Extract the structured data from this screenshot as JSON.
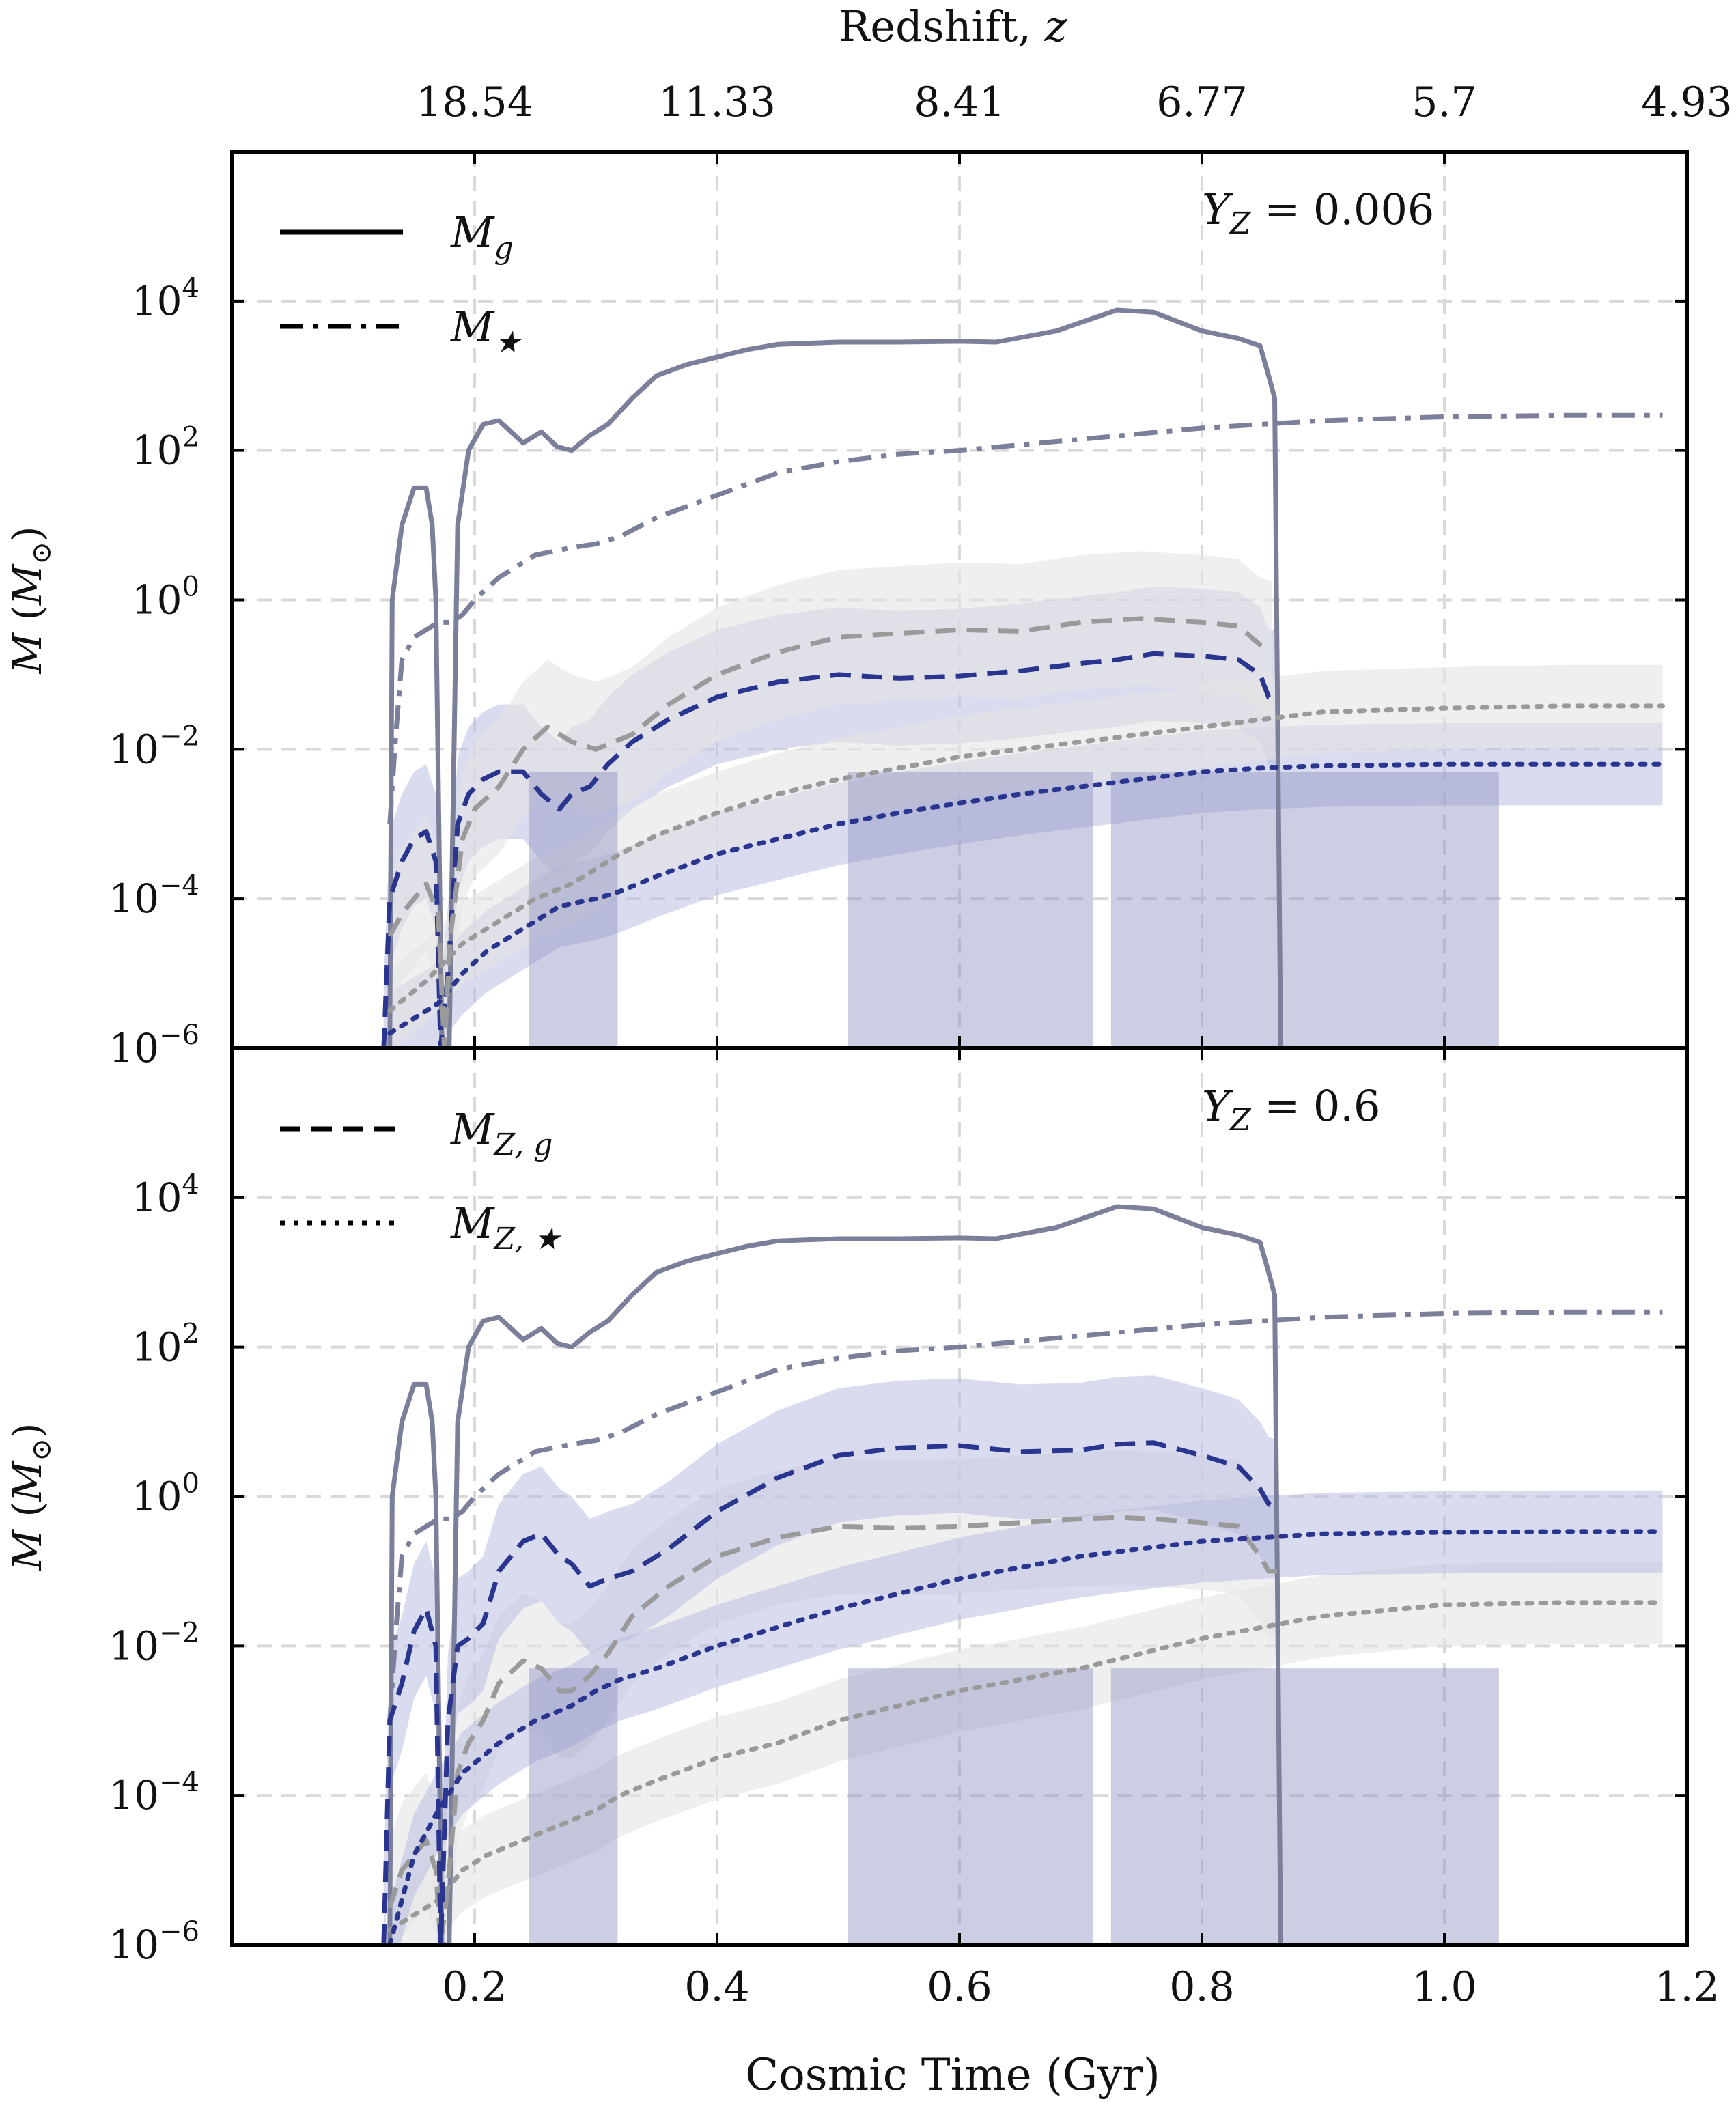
{
  "chart_data": [
    {
      "type": "line",
      "panel_label": "Y_Z = 0.006",
      "panel_label_parts": {
        "sym": "Y",
        "sub": "Z",
        "eq": " = 0.006"
      },
      "top_axis": {
        "label_text": "Redshift, ",
        "label_var": "z",
        "ticks": [
          "18.54",
          "11.33",
          "8.41",
          "6.77",
          "5.7",
          "4.93"
        ],
        "positions": [
          0.2,
          0.4,
          0.6,
          0.8,
          1.0,
          1.2
        ]
      },
      "xlim": [
        0.0,
        1.2
      ],
      "xticks": [
        0.2,
        0.4,
        0.6,
        0.8,
        1.0,
        1.2
      ],
      "xtick_labels": [
        "0.2",
        "0.4",
        "0.6",
        "0.8",
        "1.0",
        "1.2"
      ],
      "ylim_log10": [
        -6,
        6
      ],
      "yticks_log10": [
        -6,
        -4,
        -2,
        0,
        2,
        4
      ],
      "ytick_labels": [
        {
          "b": "10",
          "e": "−6"
        },
        {
          "b": "10",
          "e": "−4"
        },
        {
          "b": "10",
          "e": "−2"
        },
        {
          "b": "10",
          "e": "0"
        },
        {
          "b": "10",
          "e": "2"
        },
        {
          "b": "10",
          "e": "4"
        }
      ],
      "ylabel": {
        "sym": "M",
        "unit": "(M",
        "sun": "⊙",
        ")": ")"
      },
      "y_scale": "log",
      "grid": true,
      "legend": [
        {
          "name": "M_g",
          "sym": "M",
          "sub": "g",
          "style": "solid"
        },
        {
          "name": "M_★",
          "sym": "M",
          "sub": "★",
          "style": "dashdot"
        }
      ],
      "legend_position": "top-left",
      "series": [
        {
          "name": "M_g",
          "style": "solid",
          "color": "#7c7f9a",
          "x": [
            0.13,
            0.132,
            0.14,
            0.15,
            0.16,
            0.165,
            0.168,
            0.173,
            0.179,
            0.186,
            0.195,
            0.207,
            0.22,
            0.24,
            0.255,
            0.268,
            0.28,
            0.295,
            0.31,
            0.33,
            0.35,
            0.375,
            0.4,
            0.425,
            0.45,
            0.5,
            0.55,
            0.6,
            0.63,
            0.68,
            0.73,
            0.76,
            0.8,
            0.83,
            0.848,
            0.855,
            0.86,
            0.865
          ],
          "y": [
            -6,
            0.0,
            1.0,
            1.5,
            1.5,
            1.0,
            0.0,
            -6,
            -6,
            1.0,
            2.0,
            2.35,
            2.4,
            2.1,
            2.25,
            2.05,
            2.0,
            2.2,
            2.35,
            2.7,
            3.0,
            3.15,
            3.25,
            3.35,
            3.42,
            3.45,
            3.45,
            3.46,
            3.45,
            3.6,
            3.88,
            3.85,
            3.6,
            3.5,
            3.4,
            3.0,
            2.7,
            -6
          ]
        },
        {
          "name": "M_★",
          "style": "dashdot",
          "color": "#7c7f9a",
          "x": [
            0.13,
            0.135,
            0.14,
            0.15,
            0.16,
            0.17,
            0.18,
            0.19,
            0.2,
            0.22,
            0.25,
            0.28,
            0.3,
            0.32,
            0.35,
            0.4,
            0.45,
            0.5,
            0.55,
            0.6,
            0.7,
            0.8,
            0.9,
            1.0,
            1.1,
            1.18
          ],
          "y": [
            -3.0,
            -1.8,
            -0.8,
            -0.5,
            -0.4,
            -0.3,
            -0.3,
            -0.2,
            0.0,
            0.3,
            0.6,
            0.7,
            0.75,
            0.85,
            1.1,
            1.4,
            1.7,
            1.85,
            1.95,
            2.0,
            2.15,
            2.3,
            2.4,
            2.45,
            2.47,
            2.47
          ]
        },
        {
          "name": "M_Z,g (Y_Z=0.006)",
          "style": "dashed",
          "color": "#2a3590",
          "x": [
            0.125,
            0.13,
            0.14,
            0.15,
            0.16,
            0.168,
            0.172,
            0.178,
            0.186,
            0.195,
            0.207,
            0.22,
            0.24,
            0.255,
            0.27,
            0.28,
            0.295,
            0.31,
            0.33,
            0.36,
            0.4,
            0.45,
            0.5,
            0.55,
            0.6,
            0.65,
            0.7,
            0.73,
            0.76,
            0.8,
            0.83,
            0.848,
            0.855,
            0.862
          ],
          "y": [
            -6,
            -4.0,
            -3.5,
            -3.2,
            -3.1,
            -3.5,
            -6,
            -5,
            -3.0,
            -2.6,
            -2.4,
            -2.3,
            -2.3,
            -2.6,
            -2.8,
            -2.6,
            -2.5,
            -2.2,
            -1.9,
            -1.6,
            -1.3,
            -1.1,
            -1.0,
            -1.05,
            -1.02,
            -0.95,
            -0.85,
            -0.8,
            -0.72,
            -0.75,
            -0.8,
            -1.0,
            -1.3,
            -1.3
          ]
        },
        {
          "name": "M_Z,★ (Y_Z=0.006)",
          "style": "dotted",
          "color": "#2a3590",
          "x": [
            0.13,
            0.15,
            0.17,
            0.19,
            0.21,
            0.24,
            0.27,
            0.3,
            0.32,
            0.35,
            0.4,
            0.45,
            0.5,
            0.55,
            0.6,
            0.65,
            0.7,
            0.75,
            0.8,
            0.85,
            0.9,
            1.0,
            1.1,
            1.18
          ],
          "y": [
            -5.8,
            -5.6,
            -5.4,
            -5.0,
            -4.7,
            -4.4,
            -4.1,
            -4.0,
            -3.9,
            -3.7,
            -3.4,
            -3.2,
            -3.0,
            -2.85,
            -2.72,
            -2.6,
            -2.5,
            -2.4,
            -2.3,
            -2.25,
            -2.22,
            -2.2,
            -2.2,
            -2.2
          ]
        },
        {
          "name": "M_Z,g (Y_Z=0.6)",
          "style": "dashed",
          "color": "#9a9a9a",
          "x": [
            0.13,
            0.14,
            0.16,
            0.17,
            0.175,
            0.18,
            0.19,
            0.2,
            0.22,
            0.24,
            0.26,
            0.28,
            0.3,
            0.33,
            0.36,
            0.4,
            0.45,
            0.5,
            0.55,
            0.6,
            0.65,
            0.7,
            0.75,
            0.8,
            0.83,
            0.848,
            0.858
          ],
          "y": [
            -4.5,
            -4.2,
            -3.8,
            -4.2,
            -6,
            -4.5,
            -3.2,
            -2.8,
            -2.5,
            -2.0,
            -1.7,
            -1.9,
            -2.0,
            -1.8,
            -1.4,
            -1.0,
            -0.7,
            -0.5,
            -0.45,
            -0.4,
            -0.42,
            -0.3,
            -0.25,
            -0.3,
            -0.35,
            -0.6,
            -0.65
          ]
        },
        {
          "name": "M_Z,★ (Y_Z=0.6)",
          "style": "dotted",
          "color": "#9a9a9a",
          "x": [
            0.13,
            0.16,
            0.19,
            0.22,
            0.25,
            0.28,
            0.3,
            0.32,
            0.35,
            0.4,
            0.45,
            0.5,
            0.55,
            0.6,
            0.65,
            0.7,
            0.75,
            0.8,
            0.85,
            0.9,
            1.0,
            1.1,
            1.18
          ],
          "y": [
            -5.5,
            -5.1,
            -4.6,
            -4.3,
            -4.0,
            -3.8,
            -3.6,
            -3.4,
            -3.15,
            -2.85,
            -2.6,
            -2.4,
            -2.25,
            -2.1,
            -2.0,
            -1.9,
            -1.8,
            -1.7,
            -1.6,
            -1.5,
            -1.45,
            -1.42,
            -1.42
          ]
        }
      ]
    },
    {
      "type": "line",
      "panel_label": "Y_Z = 0.6",
      "panel_label_parts": {
        "sym": "Y",
        "sub": "Z",
        "eq": " = 0.6"
      },
      "xlim": [
        0.0,
        1.2
      ],
      "xlabel": "Cosmic Time (Gyr)",
      "xticks": [
        0.2,
        0.4,
        0.6,
        0.8,
        1.0,
        1.2
      ],
      "xtick_labels": [
        "0.2",
        "0.4",
        "0.6",
        "0.8",
        "1.0",
        "1.2"
      ],
      "ylim_log10": [
        -6,
        6
      ],
      "yticks_log10": [
        -6,
        -4,
        -2,
        0,
        2,
        4
      ],
      "ytick_labels": [
        {
          "b": "10",
          "e": "−6"
        },
        {
          "b": "10",
          "e": "−4"
        },
        {
          "b": "10",
          "e": "−2"
        },
        {
          "b": "10",
          "e": "0"
        },
        {
          "b": "10",
          "e": "2"
        },
        {
          "b": "10",
          "e": "4"
        }
      ],
      "ylabel": {
        "sym": "M",
        "unit": "(M",
        "sun": "⊙",
        ")": ")"
      },
      "y_scale": "log",
      "grid": true,
      "legend": [
        {
          "name": "M_Z,g",
          "sym": "M",
          "sub": "Z, g",
          "style": "dashed"
        },
        {
          "name": "M_Z,★",
          "sym": "M",
          "sub": "Z, ★",
          "style": "dotted"
        }
      ],
      "legend_position": "top-left",
      "series": [
        {
          "name": "M_g",
          "style": "solid",
          "color": "#7c7f9a",
          "x": [
            0.13,
            0.132,
            0.14,
            0.15,
            0.16,
            0.165,
            0.168,
            0.173,
            0.179,
            0.186,
            0.195,
            0.207,
            0.22,
            0.24,
            0.255,
            0.268,
            0.28,
            0.295,
            0.31,
            0.33,
            0.35,
            0.375,
            0.4,
            0.425,
            0.45,
            0.5,
            0.55,
            0.6,
            0.63,
            0.68,
            0.73,
            0.76,
            0.8,
            0.83,
            0.848,
            0.855,
            0.86,
            0.865
          ],
          "y": [
            -6,
            0.0,
            1.0,
            1.5,
            1.5,
            1.0,
            0.0,
            -6,
            -6,
            1.0,
            2.0,
            2.35,
            2.4,
            2.1,
            2.25,
            2.05,
            2.0,
            2.2,
            2.35,
            2.7,
            3.0,
            3.15,
            3.25,
            3.35,
            3.42,
            3.45,
            3.45,
            3.46,
            3.45,
            3.6,
            3.88,
            3.85,
            3.6,
            3.5,
            3.4,
            3.0,
            2.7,
            -6
          ]
        },
        {
          "name": "M_★",
          "style": "dashdot",
          "color": "#7c7f9a",
          "x": [
            0.13,
            0.135,
            0.14,
            0.15,
            0.16,
            0.17,
            0.18,
            0.19,
            0.2,
            0.22,
            0.25,
            0.28,
            0.3,
            0.32,
            0.35,
            0.4,
            0.45,
            0.5,
            0.55,
            0.6,
            0.7,
            0.8,
            0.9,
            1.0,
            1.1,
            1.18
          ],
          "y": [
            -3.0,
            -1.8,
            -0.8,
            -0.5,
            -0.4,
            -0.3,
            -0.3,
            -0.2,
            0.0,
            0.3,
            0.6,
            0.7,
            0.75,
            0.85,
            1.1,
            1.4,
            1.7,
            1.85,
            1.95,
            2.0,
            2.15,
            2.3,
            2.4,
            2.45,
            2.47,
            2.47
          ]
        },
        {
          "name": "M_Z,g (Y_Z=0.006)",
          "style": "dashed",
          "color": "#9a9a9a",
          "x": [
            0.13,
            0.14,
            0.16,
            0.168,
            0.172,
            0.178,
            0.186,
            0.195,
            0.207,
            0.22,
            0.24,
            0.255,
            0.27,
            0.28,
            0.295,
            0.31,
            0.33,
            0.36,
            0.4,
            0.45,
            0.5,
            0.55,
            0.6,
            0.65,
            0.7,
            0.73,
            0.76,
            0.8,
            0.83,
            0.848,
            0.855,
            0.862
          ],
          "y": [
            -5.5,
            -5.0,
            -4.6,
            -5.0,
            -6,
            -5.2,
            -3.7,
            -3.3,
            -3.0,
            -2.5,
            -2.2,
            -2.3,
            -2.6,
            -2.6,
            -2.4,
            -2.1,
            -1.6,
            -1.2,
            -0.8,
            -0.55,
            -0.4,
            -0.42,
            -0.4,
            -0.35,
            -0.3,
            -0.28,
            -0.3,
            -0.35,
            -0.4,
            -0.8,
            -1.0,
            -1.0
          ]
        },
        {
          "name": "M_Z,★ (Y_Z=0.006)",
          "style": "dotted",
          "color": "#9a9a9a",
          "x": [
            0.13,
            0.15,
            0.17,
            0.19,
            0.21,
            0.24,
            0.27,
            0.3,
            0.32,
            0.35,
            0.4,
            0.45,
            0.5,
            0.55,
            0.6,
            0.65,
            0.7,
            0.75,
            0.8,
            0.85,
            0.9,
            1.0,
            1.1,
            1.18
          ],
          "y": [
            -5.8,
            -5.6,
            -5.4,
            -5.0,
            -4.8,
            -4.6,
            -4.4,
            -4.2,
            -4.0,
            -3.8,
            -3.5,
            -3.3,
            -3.0,
            -2.8,
            -2.6,
            -2.45,
            -2.3,
            -2.1,
            -1.9,
            -1.75,
            -1.6,
            -1.45,
            -1.42,
            -1.42
          ]
        },
        {
          "name": "M_Z,g (Y_Z=0.6)",
          "style": "dashed",
          "color": "#2a3590",
          "x": [
            0.125,
            0.13,
            0.14,
            0.15,
            0.16,
            0.168,
            0.172,
            0.178,
            0.186,
            0.195,
            0.207,
            0.22,
            0.24,
            0.255,
            0.27,
            0.28,
            0.295,
            0.31,
            0.33,
            0.36,
            0.4,
            0.45,
            0.5,
            0.55,
            0.6,
            0.65,
            0.7,
            0.73,
            0.76,
            0.8,
            0.83,
            0.848,
            0.855,
            0.862
          ],
          "y": [
            -6,
            -3.0,
            -2.5,
            -1.8,
            -1.5,
            -2.0,
            -6,
            -3.0,
            -2.0,
            -1.9,
            -1.7,
            -1.0,
            -0.6,
            -0.5,
            -0.8,
            -0.9,
            -1.2,
            -1.1,
            -1.0,
            -0.7,
            -0.2,
            0.25,
            0.55,
            0.65,
            0.68,
            0.6,
            0.62,
            0.7,
            0.72,
            0.55,
            0.4,
            0.1,
            -0.1,
            -0.15
          ]
        },
        {
          "name": "M_Z,★ (Y_Z=0.6)",
          "style": "dotted",
          "color": "#2a3590",
          "x": [
            0.13,
            0.15,
            0.17,
            0.19,
            0.22,
            0.25,
            0.28,
            0.3,
            0.32,
            0.35,
            0.4,
            0.45,
            0.5,
            0.55,
            0.6,
            0.65,
            0.7,
            0.75,
            0.8,
            0.85,
            0.9,
            1.0,
            1.1,
            1.18
          ],
          "y": [
            -6,
            -4.8,
            -4.2,
            -3.7,
            -3.3,
            -3.0,
            -2.8,
            -2.6,
            -2.45,
            -2.3,
            -2.0,
            -1.75,
            -1.5,
            -1.3,
            -1.1,
            -0.95,
            -0.8,
            -0.7,
            -0.6,
            -0.55,
            -0.5,
            -0.48,
            -0.47,
            -0.47
          ]
        }
      ]
    }
  ],
  "colors": {
    "gas": "#7c7f9a",
    "metal_highlight": "#2a3590",
    "metal_other": "#9a9a9a",
    "band_highlight": "#b9bde0",
    "band_other": "#e4e4e4",
    "grid": "#d9d9d9"
  }
}
